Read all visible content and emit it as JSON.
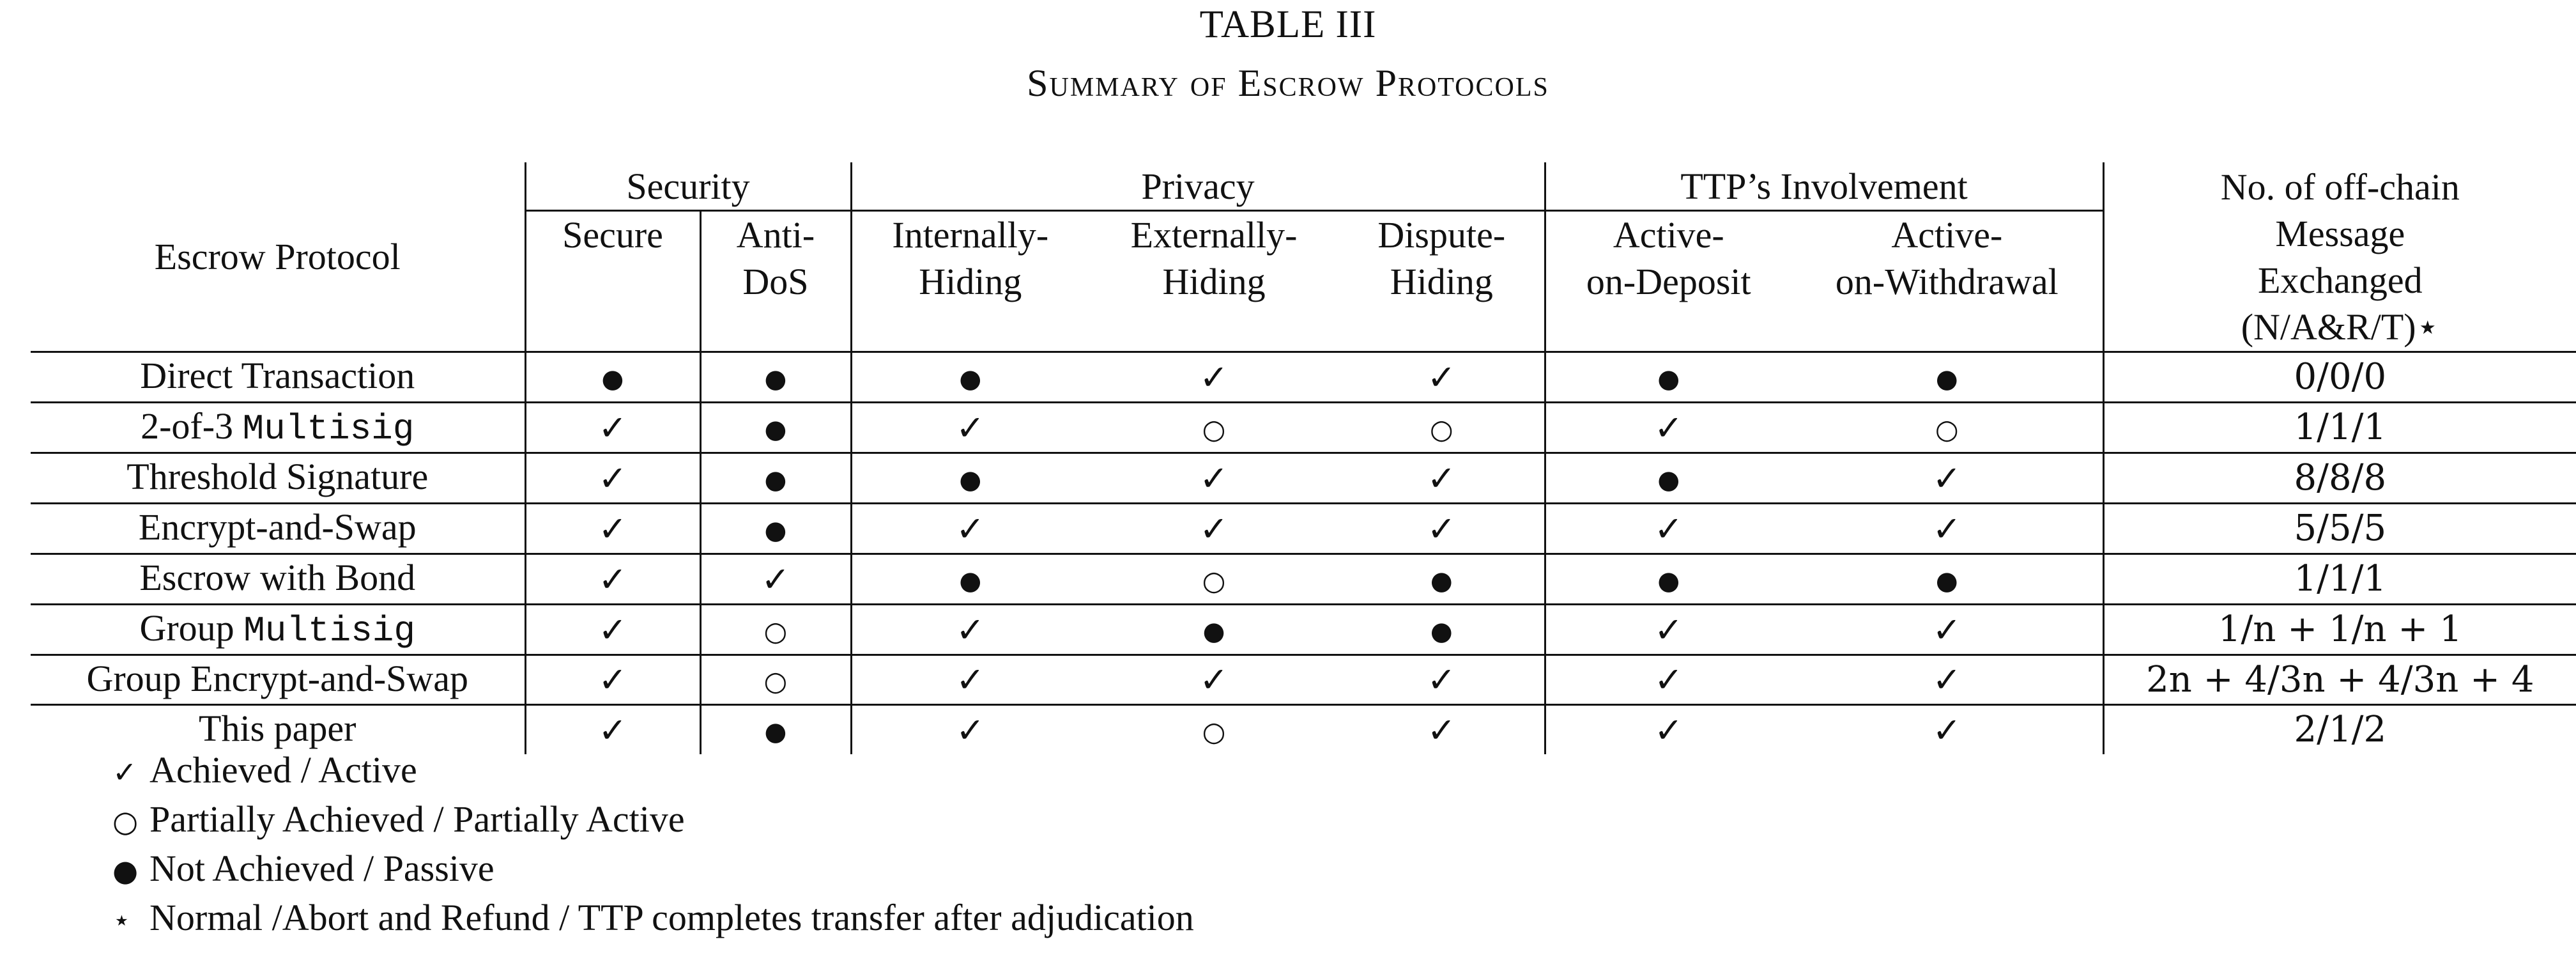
{
  "caption": {
    "label": "TABLE III",
    "title": "Summary of Escrow Protocols"
  },
  "symbols": {
    "check": "✓",
    "circle": "○",
    "dot": "●",
    "star": "⋆"
  },
  "header": {
    "protocol": "Escrow Protocol",
    "groups": {
      "security": "Security",
      "privacy": "Privacy",
      "ttp": "TTP’s Involvement"
    },
    "columns": {
      "secure": "Secure",
      "anti_dos_1": "Anti-",
      "anti_dos_2": "DoS",
      "internally_1": "Internally-",
      "internally_2": "Hiding",
      "externally_1": "Externally-",
      "externally_2": "Hiding",
      "dispute_1": "Dispute-",
      "dispute_2": "Hiding",
      "deposit_1": "Active-",
      "deposit_2": "on-Deposit",
      "withdrawal_1": "Active-",
      "withdrawal_2": "on-Withdrawal"
    },
    "messages": {
      "line1": "No. of off-chain",
      "line2": "Message",
      "line3": "Exchanged",
      "line4": "(N/A&R/T)⋆"
    }
  },
  "rows": [
    {
      "protocol_text": "Direct Transaction",
      "protocol_mono": "",
      "protocol_suffix": "",
      "values": [
        "●",
        "●",
        "●",
        "✓",
        "✓",
        "●",
        "●"
      ],
      "messages": "0/0/0"
    },
    {
      "protocol_text": "2-of-3 ",
      "protocol_mono": "Multisig",
      "protocol_suffix": "",
      "values": [
        "✓",
        "●",
        "✓",
        "○",
        "○",
        "✓",
        "○"
      ],
      "messages": "1/1/1"
    },
    {
      "protocol_text": "Threshold Signature",
      "protocol_mono": "",
      "protocol_suffix": "",
      "values": [
        "✓",
        "●",
        "●",
        "✓",
        "✓",
        "●",
        "✓"
      ],
      "messages": "8/8/8"
    },
    {
      "protocol_text": "Encrypt-and-Swap",
      "protocol_mono": "",
      "protocol_suffix": "",
      "values": [
        "✓",
        "●",
        "✓",
        "✓",
        "✓",
        "✓",
        "✓"
      ],
      "messages": "5/5/5"
    },
    {
      "protocol_text": "Escrow with Bond",
      "protocol_mono": "",
      "protocol_suffix": "",
      "values": [
        "✓",
        "✓",
        "●",
        "○",
        "●",
        "●",
        "●"
      ],
      "messages": "1/1/1"
    },
    {
      "protocol_text": "Group ",
      "protocol_mono": "Multisig",
      "protocol_suffix": "",
      "values": [
        "✓",
        "○",
        "✓",
        "●",
        "●",
        "✓",
        "✓"
      ],
      "messages": "1/n + 1/n + 1"
    },
    {
      "protocol_text": "Group Encrypt-and-Swap",
      "protocol_mono": "",
      "protocol_suffix": "",
      "values": [
        "✓",
        "○",
        "✓",
        "✓",
        "✓",
        "✓",
        "✓"
      ],
      "messages": "2n + 4/3n + 4/3n + 4"
    },
    {
      "protocol_text": "This paper",
      "protocol_mono": "",
      "protocol_suffix": "",
      "values": [
        "✓",
        "●",
        "✓",
        "○",
        "✓",
        "✓",
        "✓"
      ],
      "messages": "2/1/2"
    }
  ],
  "legend": [
    {
      "symbol": "✓",
      "text": "Achieved / Active"
    },
    {
      "symbol": "○",
      "text": "Partially Achieved / Partially Active"
    },
    {
      "symbol": "●",
      "text": "Not Achieved / Passive"
    },
    {
      "symbol": "⋆",
      "text": "Normal /Abort and Refund / TTP completes transfer after adjudication"
    }
  ]
}
